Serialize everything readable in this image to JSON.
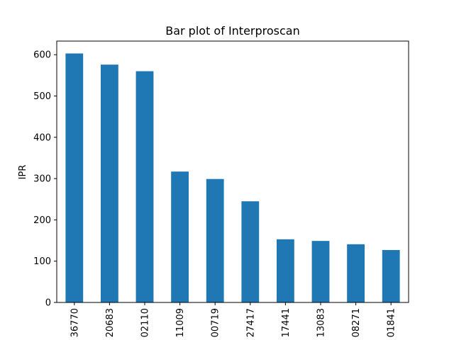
{
  "chart_data": {
    "type": "bar",
    "title": "Bar plot of Interproscan",
    "xlabel": "",
    "ylabel": "IPR",
    "categories": [
      "36770",
      "20683",
      "02110",
      "11009",
      "00719",
      "27417",
      "17441",
      "13083",
      "08271",
      "01841"
    ],
    "values": [
      603,
      576,
      560,
      317,
      299,
      245,
      153,
      149,
      141,
      127
    ],
    "ylim": [
      0,
      633
    ],
    "yticks": [
      0,
      100,
      200,
      300,
      400,
      500,
      600
    ],
    "grid": false,
    "legend": "none",
    "colors": {
      "bar": "#1f77b4",
      "axes": "#000000",
      "background": "#ffffff"
    }
  }
}
